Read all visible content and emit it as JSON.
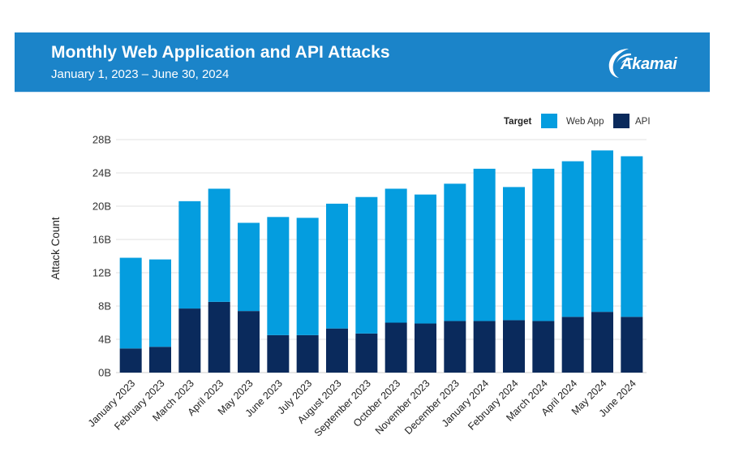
{
  "header": {
    "title": "Monthly Web Application and API Attacks",
    "subtitle": "January 1, 2023 – June 30, 2024",
    "logo_text": "Akamai",
    "logo_icon": "akamai-swoosh-icon",
    "background_color": "#1b84c9"
  },
  "chart_data": {
    "type": "bar",
    "stacked": true,
    "title": "Monthly Web Application and API Attacks",
    "subtitle": "January 1, 2023 – June 30, 2024",
    "xlabel": "",
    "ylabel": "Attack Count",
    "unit": "B",
    "ylim": [
      0,
      28
    ],
    "yticks": [
      0,
      4,
      8,
      12,
      16,
      20,
      24,
      28
    ],
    "ytick_labels": [
      "0B",
      "4B",
      "8B",
      "12B",
      "16B",
      "20B",
      "24B",
      "28B"
    ],
    "grid": true,
    "legend": {
      "title": "Target",
      "position": "top-right"
    },
    "categories": [
      "January 2023",
      "February 2023",
      "March 2023",
      "April 2023",
      "May 2023",
      "June 2023",
      "July 2023",
      "August 2023",
      "September 2023",
      "October 2023",
      "November 2023",
      "December 2023",
      "January 2024",
      "February 2024",
      "March 2024",
      "April 2024",
      "May 2024",
      "June 2024"
    ],
    "series": [
      {
        "name": "API",
        "color": "#0a2a5c",
        "values": [
          2.9,
          3.1,
          7.7,
          8.5,
          7.4,
          4.5,
          4.5,
          5.3,
          4.7,
          6.0,
          5.9,
          6.2,
          6.2,
          6.3,
          6.2,
          6.7,
          7.3,
          6.7
        ]
      },
      {
        "name": "Web App",
        "color": "#049ddf",
        "values": [
          10.9,
          10.5,
          12.9,
          13.6,
          10.6,
          14.2,
          14.1,
          15.0,
          16.4,
          16.1,
          15.5,
          16.5,
          18.3,
          16.0,
          18.3,
          18.7,
          19.4,
          19.3
        ]
      }
    ],
    "totals": [
      13.8,
      13.6,
      20.6,
      22.1,
      18.0,
      18.7,
      18.6,
      20.3,
      21.1,
      22.1,
      21.4,
      22.7,
      24.5,
      22.3,
      24.5,
      25.4,
      26.7,
      26.0
    ]
  }
}
